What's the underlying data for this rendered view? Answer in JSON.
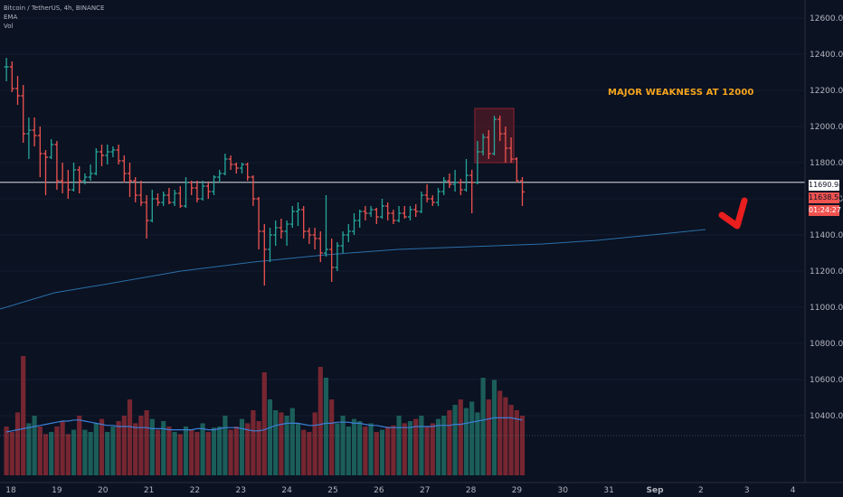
{
  "legend": {
    "symbol": "Bitcoin / TetherUS, 4h, BINANCE",
    "ema_label": "EMA",
    "vol_label": "Vol"
  },
  "annotation": {
    "text": "MAJOR WEAKNESS AT 12000",
    "color": "#f7a51d"
  },
  "price_tags": {
    "horizontal_line_price": "11690.94",
    "last_price": "11638.50",
    "countdown": "01:24:27"
  },
  "colors": {
    "background": "#0b1222",
    "up": "#26a69a",
    "down": "#ef5350",
    "ema": "#2a6fa8",
    "volume_ma": "#3d7fd6",
    "arrow": "#e91e1e"
  },
  "chart_data": {
    "type": "candlestick",
    "title": "Bitcoin / TetherUS, 4h, BINANCE",
    "price_axis_ticks": [
      "12600.00",
      "12400.00",
      "12200.00",
      "12000.00",
      "11800.00",
      "11600.00",
      "11400.00",
      "11200.00",
      "11000.00",
      "10800.00",
      "10600.00",
      "10400.00"
    ],
    "date_axis_ticks": [
      "18",
      "19",
      "20",
      "21",
      "22",
      "23",
      "24",
      "25",
      "26",
      "27",
      "28",
      "29",
      "30",
      "31",
      "Sep",
      "2",
      "3",
      "4"
    ],
    "ylim": [
      10200,
      12700
    ],
    "horizontal_line": 11690.94,
    "highlight_box": {
      "price_from": 11800,
      "price_to": 12100
    },
    "candles": [
      [
        12330,
        12380,
        12250,
        12330
      ],
      [
        12330,
        12360,
        12190,
        12210
      ],
      [
        12210,
        12280,
        12120,
        12170
      ],
      [
        12170,
        12230,
        11910,
        11960
      ],
      [
        11960,
        12050,
        11820,
        11980
      ],
      [
        11980,
        12050,
        11890,
        11950
      ],
      [
        11950,
        12000,
        11720,
        11850
      ],
      [
        11850,
        11870,
        11620,
        11830
      ],
      [
        11830,
        11930,
        11820,
        11900
      ],
      [
        11900,
        11920,
        11650,
        11700
      ],
      [
        11700,
        11800,
        11630,
        11690
      ],
      [
        11690,
        11760,
        11600,
        11650
      ],
      [
        11650,
        11800,
        11640,
        11760
      ],
      [
        11760,
        11780,
        11630,
        11700
      ],
      [
        11700,
        11740,
        11680,
        11720
      ],
      [
        11720,
        11790,
        11700,
        11740
      ],
      [
        11740,
        11880,
        11730,
        11860
      ],
      [
        11860,
        11900,
        11780,
        11840
      ],
      [
        11840,
        11900,
        11790,
        11860
      ],
      [
        11860,
        11890,
        11830,
        11870
      ],
      [
        11870,
        11900,
        11790,
        11810
      ],
      [
        11810,
        11840,
        11690,
        11740
      ],
      [
        11740,
        11800,
        11610,
        11700
      ],
      [
        11700,
        11720,
        11580,
        11620
      ],
      [
        11620,
        11700,
        11560,
        11580
      ],
      [
        11580,
        11620,
        11380,
        11480
      ],
      [
        11480,
        11650,
        11470,
        11600
      ],
      [
        11600,
        11630,
        11560,
        11580
      ],
      [
        11580,
        11640,
        11560,
        11620
      ],
      [
        11620,
        11660,
        11570,
        11580
      ],
      [
        11580,
        11650,
        11560,
        11630
      ],
      [
        11630,
        11670,
        11550,
        11560
      ],
      [
        11560,
        11720,
        11550,
        11690
      ],
      [
        11690,
        11700,
        11620,
        11660
      ],
      [
        11660,
        11700,
        11580,
        11600
      ],
      [
        11600,
        11700,
        11590,
        11670
      ],
      [
        11670,
        11690,
        11600,
        11640
      ],
      [
        11640,
        11730,
        11620,
        11720
      ],
      [
        11720,
        11760,
        11690,
        11740
      ],
      [
        11740,
        11850,
        11730,
        11820
      ],
      [
        11820,
        11840,
        11760,
        11790
      ],
      [
        11790,
        11800,
        11740,
        11770
      ],
      [
        11770,
        11800,
        11740,
        11790
      ],
      [
        11790,
        11800,
        11700,
        11720
      ],
      [
        11720,
        11730,
        11560,
        11600
      ],
      [
        11600,
        11610,
        11320,
        11420
      ],
      [
        11420,
        11460,
        11120,
        11320
      ],
      [
        11320,
        11440,
        11250,
        11400
      ],
      [
        11400,
        11480,
        11340,
        11440
      ],
      [
        11440,
        11490,
        11380,
        11420
      ],
      [
        11420,
        11480,
        11340,
        11460
      ],
      [
        11460,
        11560,
        11440,
        11530
      ],
      [
        11530,
        11580,
        11450,
        11540
      ],
      [
        11540,
        11560,
        11380,
        11420
      ],
      [
        11420,
        11440,
        11350,
        11400
      ],
      [
        11400,
        11440,
        11320,
        11380
      ],
      [
        11380,
        11420,
        11250,
        11300
      ],
      [
        11300,
        11620,
        11280,
        11320
      ],
      [
        11320,
        11380,
        11140,
        11220
      ],
      [
        11220,
        11360,
        11200,
        11340
      ],
      [
        11340,
        11420,
        11300,
        11400
      ],
      [
        11400,
        11460,
        11360,
        11420
      ],
      [
        11420,
        11520,
        11400,
        11480
      ],
      [
        11480,
        11540,
        11440,
        11530
      ],
      [
        11530,
        11560,
        11480,
        11520
      ],
      [
        11520,
        11560,
        11500,
        11540
      ],
      [
        11540,
        11550,
        11460,
        11500
      ],
      [
        11500,
        11600,
        11490,
        11560
      ],
      [
        11560,
        11580,
        11480,
        11520
      ],
      [
        11520,
        11540,
        11460,
        11480
      ],
      [
        11480,
        11560,
        11470,
        11520
      ],
      [
        11520,
        11560,
        11490,
        11500
      ],
      [
        11500,
        11560,
        11480,
        11540
      ],
      [
        11540,
        11570,
        11500,
        11530
      ],
      [
        11530,
        11640,
        11520,
        11620
      ],
      [
        11620,
        11680,
        11580,
        11600
      ],
      [
        11600,
        11620,
        11560,
        11580
      ],
      [
        11580,
        11660,
        11560,
        11640
      ],
      [
        11640,
        11720,
        11620,
        11700
      ],
      [
        11700,
        11740,
        11660,
        11680
      ],
      [
        11680,
        11760,
        11640,
        11690
      ],
      [
        11690,
        11710,
        11620,
        11650
      ],
      [
        11650,
        11820,
        11640,
        11730
      ],
      [
        11730,
        11760,
        11520,
        11690
      ],
      [
        11690,
        11920,
        11680,
        11860
      ],
      [
        11860,
        11960,
        11840,
        11940
      ],
      [
        11940,
        11980,
        11820,
        11850
      ],
      [
        11850,
        12060,
        11840,
        12040
      ],
      [
        12040,
        12060,
        11920,
        11960
      ],
      [
        11960,
        12000,
        11800,
        11880
      ],
      [
        11880,
        11940,
        11800,
        11820
      ],
      [
        11820,
        11830,
        11690,
        11700
      ],
      [
        11700,
        11720,
        11560,
        11638
      ]
    ],
    "volume": [
      45,
      40,
      58,
      110,
      48,
      55,
      45,
      38,
      40,
      45,
      50,
      38,
      42,
      55,
      42,
      40,
      48,
      52,
      40,
      45,
      50,
      55,
      70,
      48,
      55,
      60,
      52,
      42,
      50,
      45,
      40,
      38,
      45,
      42,
      40,
      48,
      40,
      44,
      45,
      55,
      42,
      45,
      52,
      48,
      60,
      50,
      95,
      70,
      60,
      58,
      55,
      62,
      48,
      42,
      40,
      58,
      100,
      90,
      70,
      48,
      55,
      45,
      52,
      50,
      45,
      48,
      40,
      42,
      45,
      46,
      55,
      48,
      50,
      52,
      55,
      45,
      48,
      52,
      55,
      60,
      65,
      70,
      62,
      68,
      58,
      90,
      70,
      88,
      78,
      72,
      65,
      60,
      55
    ],
    "volume_up": [
      false,
      false,
      false,
      false,
      true,
      true,
      false,
      false,
      true,
      false,
      false,
      false,
      true,
      false,
      true,
      true,
      true,
      false,
      true,
      true,
      false,
      false,
      false,
      false,
      false,
      false,
      true,
      false,
      true,
      false,
      true,
      false,
      true,
      false,
      false,
      true,
      false,
      true,
      true,
      true,
      false,
      false,
      true,
      false,
      false,
      false,
      false,
      true,
      true,
      false,
      true,
      true,
      true,
      false,
      false,
      false,
      false,
      true,
      false,
      true,
      true,
      true,
      true,
      true,
      false,
      true,
      false,
      true,
      false,
      false,
      true,
      false,
      true,
      false,
      true,
      false,
      false,
      true,
      true,
      false,
      true,
      false,
      true,
      true,
      true,
      true,
      false,
      true,
      false,
      false,
      false,
      false,
      false
    ],
    "volume_ma": [
      40,
      41,
      42,
      43,
      44,
      45,
      46,
      47,
      48,
      49,
      50,
      50,
      51,
      51,
      50,
      49,
      48,
      47,
      46,
      46,
      45,
      45,
      45,
      44,
      44,
      44,
      43,
      43,
      43,
      42,
      42,
      42,
      42,
      42,
      43,
      43,
      42,
      42,
      43,
      44,
      44,
      44,
      43,
      42,
      41,
      41,
      42,
      44,
      46,
      47,
      48,
      48,
      48,
      47,
      46,
      46,
      47,
      48,
      48,
      49,
      49,
      49,
      48,
      48,
      47,
      46,
      46,
      45,
      44,
      44,
      44,
      44,
      44,
      45,
      45,
      45,
      45,
      46,
      46,
      46,
      47,
      47,
      48,
      49,
      50,
      51,
      52,
      53,
      53,
      53,
      53,
      52,
      51
    ],
    "ema_points": [
      [
        0,
        10990
      ],
      [
        60,
        11080
      ],
      [
        120,
        11130
      ],
      [
        200,
        11200
      ],
      [
        280,
        11250
      ],
      [
        360,
        11290
      ],
      [
        440,
        11320
      ],
      [
        520,
        11335
      ],
      [
        600,
        11350
      ],
      [
        660,
        11370
      ],
      [
        720,
        11400
      ],
      [
        780,
        11430
      ]
    ]
  }
}
